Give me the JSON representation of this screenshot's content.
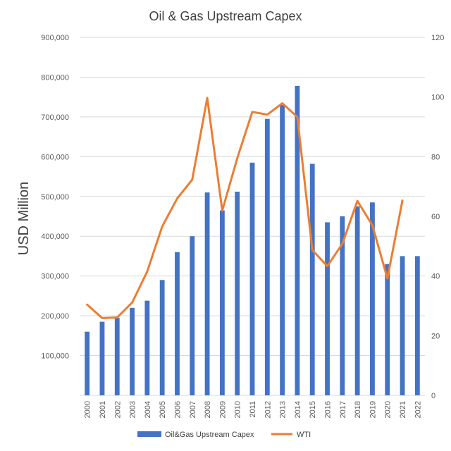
{
  "chart_data": {
    "type": "bar",
    "title": "Oil & Gas Upstream Capex",
    "ylabel": "USD Million",
    "y2label": "",
    "xlabel": "",
    "categories": [
      "2000",
      "2001",
      "2002",
      "2003",
      "2004",
      "2005",
      "2006",
      "2007",
      "2008",
      "2009",
      "2010",
      "2011",
      "2012",
      "2013",
      "2014",
      "2015",
      "2016",
      "2017",
      "2018",
      "2019",
      "2020",
      "2021",
      "2022"
    ],
    "series": [
      {
        "name": "Oil&Gas Upstream Capex",
        "type": "bar",
        "axis": "left",
        "color": "#4472C4",
        "values": [
          160000,
          185000,
          195000,
          220000,
          238000,
          290000,
          360000,
          400000,
          510000,
          465000,
          512000,
          585000,
          695000,
          730000,
          778000,
          582000,
          435000,
          450000,
          475000,
          485000,
          330000,
          350000,
          350000
        ]
      },
      {
        "name": "WTI",
        "type": "line",
        "axis": "right",
        "color": "#ED7D31",
        "values": [
          30.4,
          25.9,
          26.1,
          31.1,
          41.5,
          56.6,
          66.0,
          72.3,
          99.7,
          61.9,
          79.5,
          95.0,
          94.1,
          97.9,
          93.3,
          48.7,
          43.3,
          50.8,
          65.2,
          57.0,
          39.2,
          65.3,
          null
        ]
      }
    ],
    "ylim": [
      0,
      900000
    ],
    "y2lim": [
      0,
      120
    ],
    "yticks": [
      "",
      "100,000",
      "200,000",
      "300,000",
      "400,000",
      "500,000",
      "600,000",
      "700,000",
      "800,000",
      "900,000"
    ],
    "y2ticks": [
      "0",
      "20",
      "40",
      "60",
      "80",
      "100",
      "120"
    ],
    "grid": "horizontal",
    "legend_position": "bottom"
  }
}
